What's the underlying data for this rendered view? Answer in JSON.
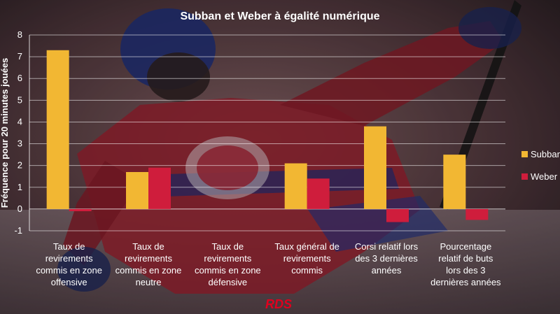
{
  "colors": {
    "subban": "#f2b733",
    "weber": "#cf1d3c",
    "brand_red": "#e1001e"
  },
  "logo_text": "RDS",
  "chart_data": {
    "type": "bar",
    "title": "Subban et Weber à égalité numérique",
    "ylabel": "Fréquence pour 20 minutes jouées",
    "xlabel": "",
    "ylim": [
      -1,
      8
    ],
    "yticks": [
      -1,
      0,
      1,
      2,
      3,
      4,
      5,
      6,
      7,
      8
    ],
    "grid": true,
    "legend": "right",
    "categories": [
      [
        "Taux de",
        "revirements",
        "commis en zone",
        "offensive"
      ],
      [
        "Taux de",
        "revirements",
        "commis en zone",
        "neutre"
      ],
      [
        "Taux de",
        "revirements",
        "commis en zone",
        "défensive"
      ],
      [
        "Taux général de",
        "revirements",
        "commis"
      ],
      [
        "Corsi relatif lors",
        "des 3 dernières",
        "années"
      ],
      [
        "Pourcentage",
        "relatif de buts",
        "lors des 3",
        "dernières années"
      ]
    ],
    "series": [
      {
        "name": "Subban",
        "values": [
          7.3,
          1.7,
          0,
          2.1,
          3.8,
          2.5
        ]
      },
      {
        "name": "Weber",
        "values": [
          -0.1,
          1.9,
          0,
          1.4,
          -0.6,
          -0.5
        ]
      }
    ]
  }
}
